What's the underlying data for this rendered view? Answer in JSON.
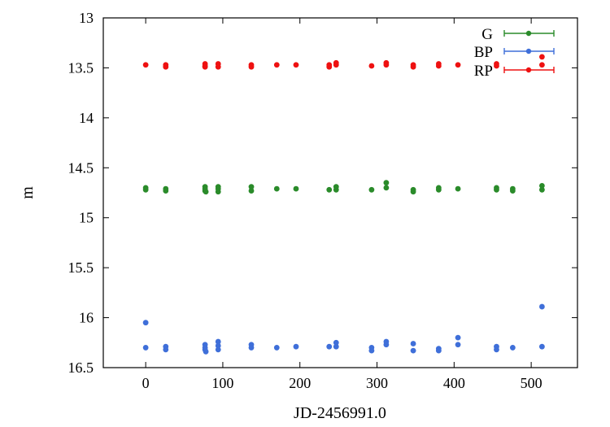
{
  "chart_data": {
    "type": "scatter",
    "xlabel": "JD-2456991.0",
    "ylabel": "m",
    "xlim": [
      -55,
      560
    ],
    "ylim": [
      16.5,
      13
    ],
    "y_inverted": true,
    "grid": false,
    "legend_position": "top-right",
    "x_ticks": [
      "0",
      "100",
      "200",
      "300",
      "400",
      "500"
    ],
    "x_tick_values": [
      0,
      100,
      200,
      300,
      400,
      500
    ],
    "y_ticks": [
      "13",
      "13.5",
      "14",
      "14.5",
      "15",
      "15.5",
      "16",
      "16.5"
    ],
    "y_tick_values": [
      13,
      13.5,
      14,
      14.5,
      15,
      15.5,
      16,
      16.5
    ],
    "series": [
      {
        "name": "G",
        "color": "#2a8b2a",
        "marker": "circle",
        "x": [
          0,
          0,
          26,
          26,
          77,
          77,
          77,
          78,
          94,
          94,
          94,
          137,
          137,
          170,
          195,
          238,
          247,
          247,
          293,
          312,
          312,
          347,
          347,
          380,
          380,
          405,
          455,
          455,
          476,
          476,
          514,
          514
        ],
        "y": [
          14.7,
          14.72,
          14.71,
          14.73,
          14.69,
          14.71,
          14.73,
          14.74,
          14.69,
          14.71,
          14.74,
          14.69,
          14.73,
          14.71,
          14.71,
          14.72,
          14.69,
          14.72,
          14.72,
          14.65,
          14.7,
          14.72,
          14.74,
          14.7,
          14.72,
          14.71,
          14.7,
          14.72,
          14.71,
          14.73,
          14.68,
          14.72
        ]
      },
      {
        "name": "BP",
        "color": "#3f6fd9",
        "marker": "circle",
        "x": [
          0,
          0,
          26,
          26,
          77,
          77,
          77,
          78,
          94,
          94,
          94,
          137,
          137,
          170,
          195,
          238,
          247,
          247,
          293,
          293,
          312,
          312,
          347,
          347,
          380,
          380,
          405,
          405,
          455,
          455,
          476,
          514,
          514
        ],
        "y": [
          16.05,
          16.3,
          16.29,
          16.32,
          16.27,
          16.3,
          16.32,
          16.34,
          16.24,
          16.28,
          16.32,
          16.27,
          16.3,
          16.3,
          16.29,
          16.29,
          16.25,
          16.29,
          16.3,
          16.33,
          16.24,
          16.27,
          16.26,
          16.33,
          16.31,
          16.33,
          16.2,
          16.27,
          16.29,
          16.32,
          16.3,
          15.89,
          16.29
        ]
      },
      {
        "name": "RP",
        "color": "#ee1111",
        "marker": "circle",
        "x": [
          0,
          26,
          26,
          77,
          77,
          77,
          94,
          94,
          137,
          137,
          170,
          195,
          238,
          238,
          247,
          247,
          293,
          312,
          312,
          347,
          347,
          380,
          380,
          405,
          455,
          455,
          514,
          514
        ],
        "y": [
          13.47,
          13.47,
          13.49,
          13.46,
          13.48,
          13.49,
          13.46,
          13.49,
          13.47,
          13.49,
          13.47,
          13.47,
          13.47,
          13.49,
          13.45,
          13.47,
          13.48,
          13.45,
          13.47,
          13.47,
          13.49,
          13.46,
          13.48,
          13.47,
          13.46,
          13.48,
          13.39,
          13.47
        ]
      }
    ]
  }
}
